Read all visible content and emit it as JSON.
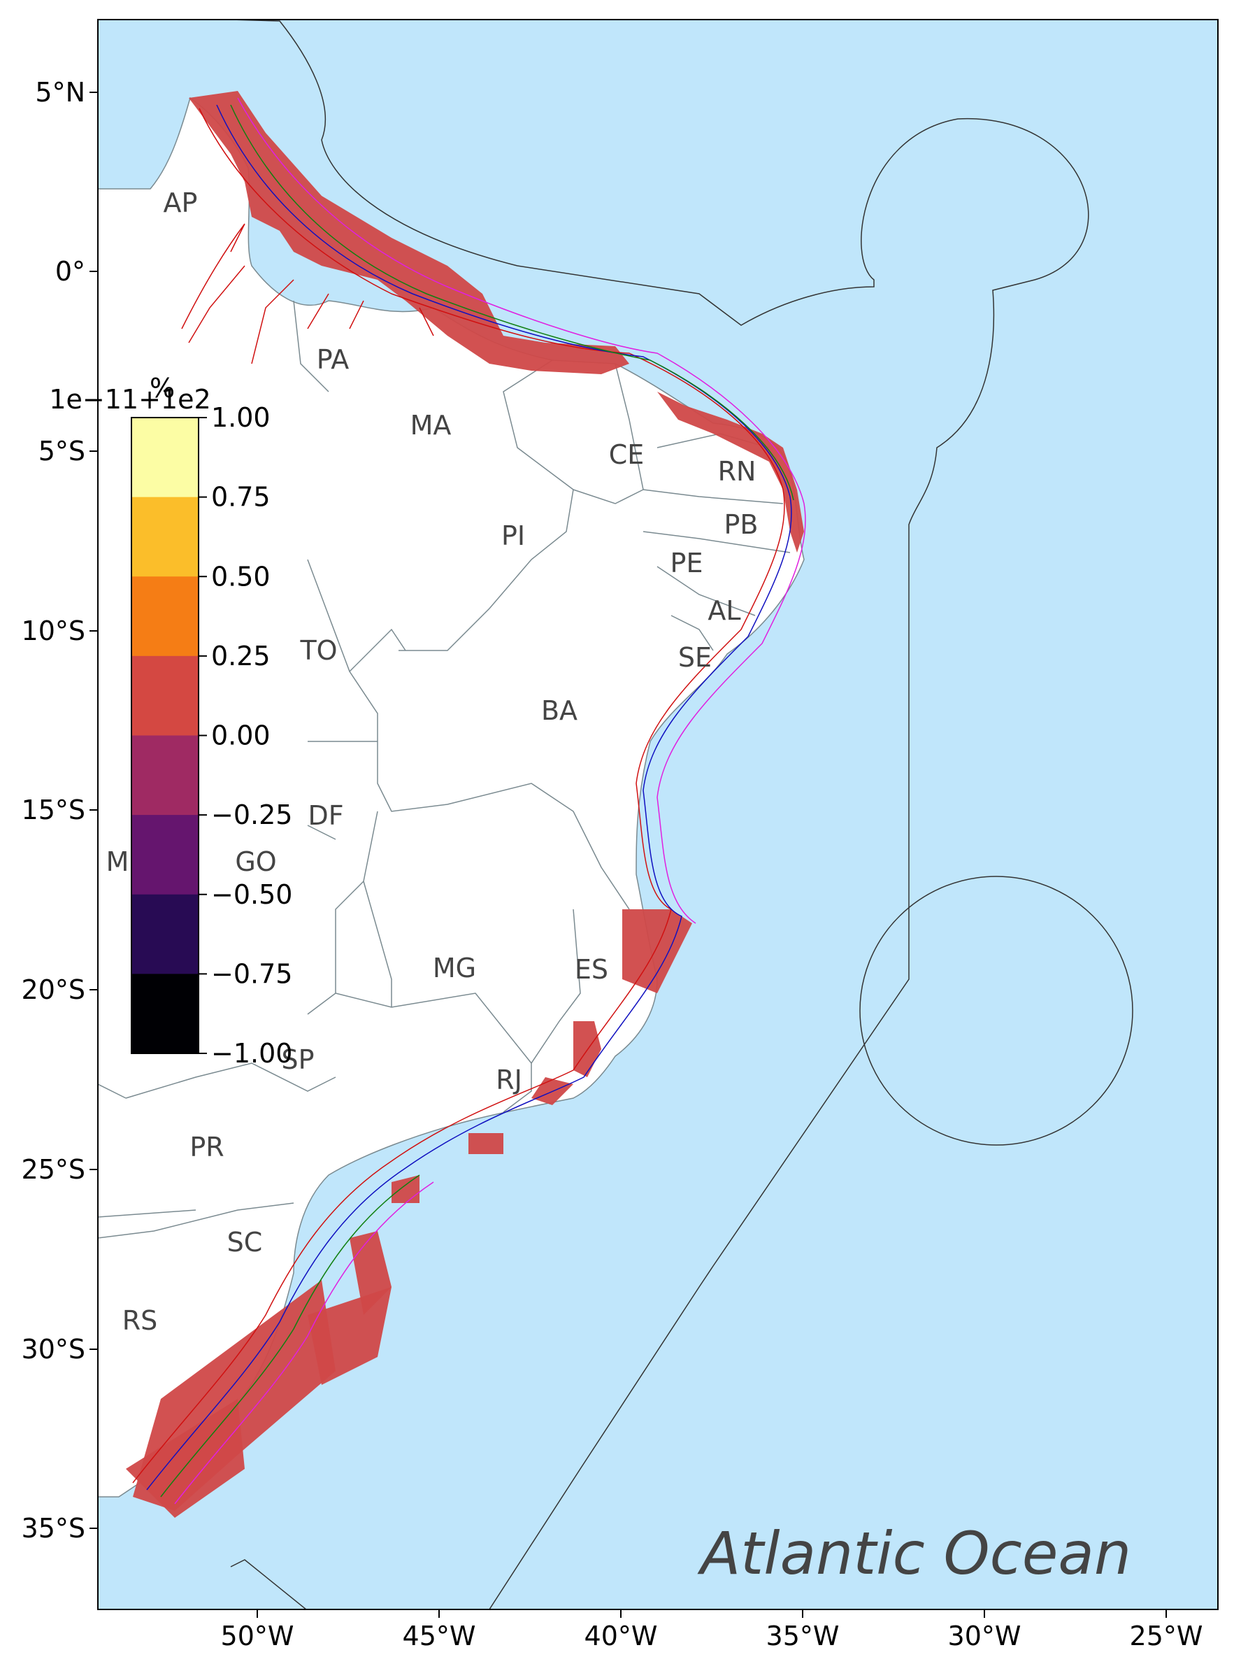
{
  "map": {
    "ocean_label": "Atlantic Ocean",
    "ocean_color": "#c0e6fb",
    "land_color": "#ffffff",
    "hatch_color": "#d04848",
    "longitude_ticks": [
      "50°W",
      "45°W",
      "40°W",
      "35°W",
      "30°W",
      "25°W"
    ],
    "latitude_ticks": [
      "5°N",
      "0°",
      "5°S",
      "10°S",
      "15°S",
      "20°S",
      "25°S",
      "30°S",
      "35°S"
    ],
    "states": [
      "AP",
      "PA",
      "MA",
      "CE",
      "RN",
      "PB",
      "PE",
      "AL",
      "SE",
      "PI",
      "TO",
      "BA",
      "DF",
      "GO",
      "M",
      "MG",
      "ES",
      "SP",
      "RJ",
      "PR",
      "SC",
      "RS"
    ]
  },
  "colorbar": {
    "title": "%",
    "offset_label": "1e−11+1e2",
    "tick_labels": [
      "1.00",
      "0.75",
      "0.50",
      "0.25",
      "0.00",
      "−0.25",
      "−0.50",
      "−0.75",
      "−1.00"
    ],
    "colors": [
      "#fcfda4",
      "#fbbe2a",
      "#f57d15",
      "#d44842",
      "#9f2a63",
      "#65156e",
      "#280b54",
      "#000004"
    ]
  }
}
